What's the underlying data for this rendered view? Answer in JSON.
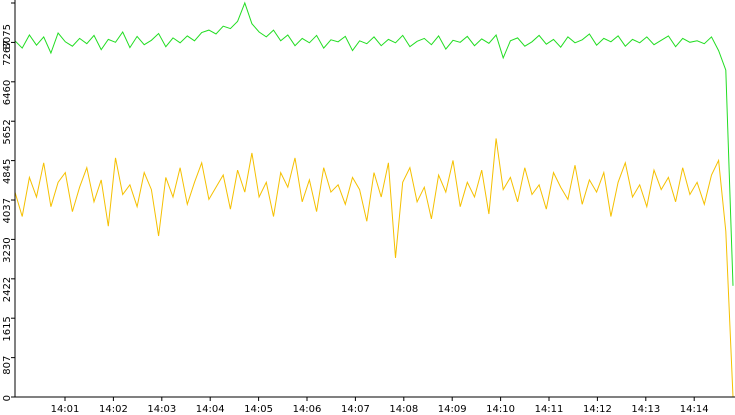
{
  "chart_data": {
    "type": "line",
    "ylim": [
      0,
      8075
    ],
    "yticks": [
      0,
      807,
      1615,
      2422,
      3230,
      4037,
      4845,
      5652,
      6460,
      7267,
      8075
    ],
    "xticks": [
      "14:01",
      "14:02",
      "14:03",
      "14:04",
      "14:05",
      "14:06",
      "14:07",
      "14:08",
      "14:09",
      "14:10",
      "14:11",
      "14:12",
      "14:13",
      "14:14"
    ],
    "series": [
      {
        "color": "#22dd22",
        "values": [
          7300,
          7150,
          7420,
          7210,
          7380,
          7050,
          7460,
          7280,
          7190,
          7350,
          7240,
          7410,
          7120,
          7330,
          7270,
          7480,
          7160,
          7390,
          7220,
          7310,
          7450,
          7180,
          7360,
          7260,
          7400,
          7300,
          7470,
          7520,
          7440,
          7600,
          7550,
          7700,
          8075,
          7650,
          7480,
          7380,
          7520,
          7300,
          7420,
          7200,
          7350,
          7260,
          7410,
          7150,
          7320,
          7280,
          7390,
          7100,
          7300,
          7240,
          7380,
          7200,
          7330,
          7260,
          7410,
          7180,
          7290,
          7350,
          7220,
          7400,
          7130,
          7310,
          7270,
          7390,
          7200,
          7340,
          7250,
          7420,
          6950,
          7300,
          7360,
          7190,
          7280,
          7410,
          7230,
          7330,
          7170,
          7380,
          7260,
          7320,
          7440,
          7210,
          7350,
          7280,
          7400,
          7190,
          7330,
          7260,
          7380,
          7220,
          7310,
          7400,
          7180,
          7350,
          7270,
          7300,
          7240,
          7380,
          7100,
          6700,
          2280
        ]
      },
      {
        "color": "#f5c000",
        "values": [
          4200,
          3700,
          4500,
          4100,
          4800,
          3900,
          4400,
          4600,
          3800,
          4300,
          4700,
          4000,
          4450,
          3500,
          4900,
          4150,
          4350,
          3900,
          4600,
          4250,
          3300,
          4500,
          4100,
          4700,
          3950,
          4400,
          4800,
          4050,
          4300,
          4550,
          3850,
          4650,
          4200,
          5000,
          4100,
          4400,
          3700,
          4600,
          4300,
          4900,
          4000,
          4450,
          3800,
          4700,
          4200,
          4350,
          3950,
          4500,
          4250,
          3600,
          4600,
          4100,
          4800,
          2850,
          4400,
          4700,
          4000,
          4300,
          3650,
          4550,
          4200,
          4850,
          3900,
          4400,
          4100,
          4650,
          3750,
          5300,
          4250,
          4500,
          4000,
          4700,
          4150,
          4350,
          3850,
          4600,
          4300,
          4050,
          4750,
          3950,
          4450,
          4200,
          4600,
          3700,
          4400,
          4800,
          4100,
          4350,
          3900,
          4650,
          4250,
          4500,
          4000,
          4700,
          4150,
          4400,
          3950,
          4550,
          4850,
          3400,
          0
        ]
      }
    ]
  }
}
